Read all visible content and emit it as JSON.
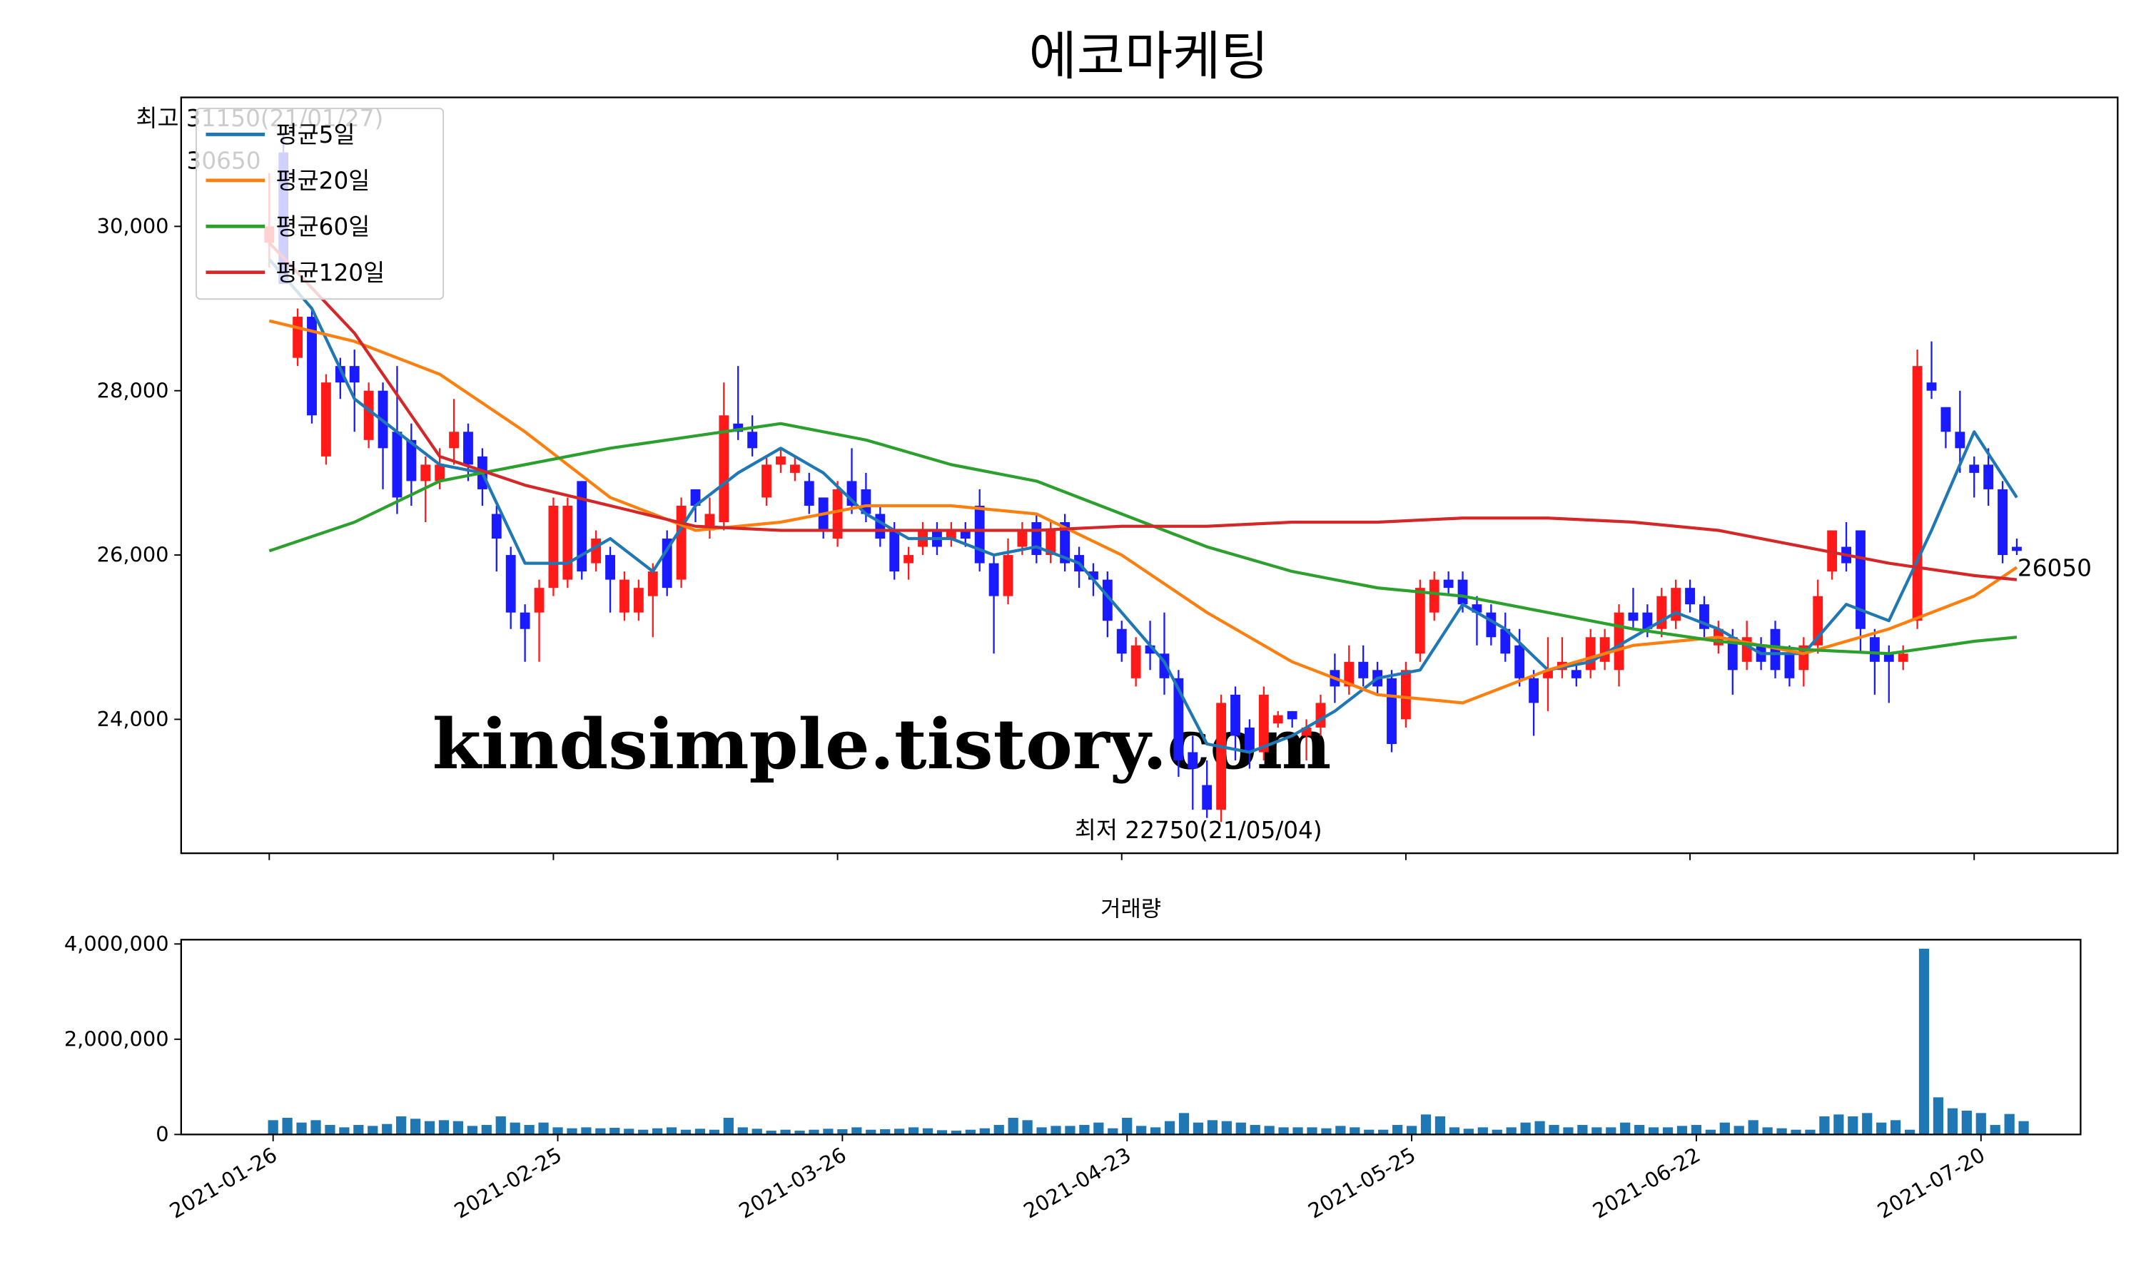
{
  "chart_data": [
    {
      "type": "candlestick",
      "title": "에코마케팅",
      "up_color": "#ff1a1a",
      "down_color": "#1a1aff",
      "xlim": [
        -6.2,
        130.1
      ],
      "ylim": [
        22370,
        31570
      ],
      "yticks": [
        {
          "value": 24000,
          "label": "24,000"
        },
        {
          "value": 26000,
          "label": "26,000"
        },
        {
          "value": 28000,
          "label": "28,000"
        },
        {
          "value": 30000,
          "label": "30,000"
        }
      ],
      "legend": "upper left",
      "candles": [
        [
          29800,
          30650,
          29500,
          30000
        ],
        [
          30900,
          31150,
          29300,
          29300
        ],
        [
          28400,
          29000,
          28300,
          28900
        ],
        [
          28900,
          29000,
          27600,
          27700
        ],
        [
          27200,
          28200,
          27100,
          28100
        ],
        [
          28300,
          28400,
          27900,
          28100
        ],
        [
          28300,
          28500,
          27500,
          28100
        ],
        [
          27400,
          28100,
          27300,
          28000
        ],
        [
          28000,
          28100,
          26800,
          27300
        ],
        [
          27500,
          28300,
          26500,
          26700
        ],
        [
          27400,
          27600,
          26600,
          26900
        ],
        [
          26900,
          27200,
          26400,
          27100
        ],
        [
          26900,
          27300,
          26800,
          27100
        ],
        [
          27300,
          27900,
          27100,
          27500
        ],
        [
          27500,
          27600,
          26900,
          27100
        ],
        [
          27200,
          27300,
          26600,
          26800
        ],
        [
          26500,
          26600,
          25800,
          26200
        ],
        [
          26000,
          26100,
          25100,
          25300
        ],
        [
          25300,
          25400,
          24700,
          25100
        ],
        [
          25300,
          25700,
          24700,
          25600
        ],
        [
          25600,
          26700,
          25500,
          26600
        ],
        [
          25700,
          26700,
          25600,
          26600
        ],
        [
          26900,
          26900,
          25700,
          25800
        ],
        [
          25900,
          26300,
          25800,
          26200
        ],
        [
          26000,
          26100,
          25300,
          25700
        ],
        [
          25300,
          25800,
          25200,
          25700
        ],
        [
          25300,
          25700,
          25200,
          25600
        ],
        [
          25500,
          25900,
          25000,
          25800
        ],
        [
          26200,
          26300,
          25500,
          25600
        ],
        [
          25700,
          26700,
          25600,
          26600
        ],
        [
          26800,
          26800,
          26400,
          26600
        ],
        [
          26300,
          26700,
          26200,
          26500
        ],
        [
          26400,
          28100,
          26300,
          27700
        ],
        [
          27600,
          28300,
          27400,
          27500
        ],
        [
          27500,
          27700,
          27200,
          27300
        ],
        [
          26700,
          27200,
          26600,
          27100
        ],
        [
          27100,
          27300,
          27000,
          27200
        ],
        [
          27000,
          27200,
          26900,
          27100
        ],
        [
          26900,
          27000,
          26500,
          26600
        ],
        [
          26700,
          26700,
          26200,
          26300
        ],
        [
          26200,
          26900,
          26100,
          26800
        ],
        [
          26900,
          27300,
          26500,
          26600
        ],
        [
          26800,
          27000,
          26400,
          26500
        ],
        [
          26500,
          26600,
          26100,
          26200
        ],
        [
          26300,
          26400,
          25700,
          25800
        ],
        [
          25900,
          26100,
          25700,
          26000
        ],
        [
          26100,
          26400,
          26000,
          26300
        ],
        [
          26300,
          26400,
          26000,
          26100
        ],
        [
          26200,
          26400,
          26100,
          26300
        ],
        [
          26300,
          26400,
          26100,
          26200
        ],
        [
          26600,
          26800,
          25800,
          25900
        ],
        [
          25900,
          26000,
          24800,
          25500
        ],
        [
          25500,
          26200,
          25400,
          26000
        ],
        [
          26100,
          26400,
          26000,
          26300
        ],
        [
          26400,
          26500,
          25900,
          26000
        ],
        [
          26000,
          26400,
          25900,
          26300
        ],
        [
          26400,
          26500,
          25800,
          25900
        ],
        [
          26000,
          26100,
          25600,
          25800
        ],
        [
          25800,
          25900,
          25500,
          25700
        ],
        [
          25700,
          25800,
          25000,
          25200
        ],
        [
          25100,
          25200,
          24700,
          24800
        ],
        [
          24500,
          25000,
          24400,
          24900
        ],
        [
          24900,
          25200,
          24600,
          24800
        ],
        [
          24800,
          25300,
          24300,
          24500
        ],
        [
          24500,
          24600,
          23300,
          23500
        ],
        [
          23600,
          23800,
          22900,
          23400
        ],
        [
          23200,
          23500,
          22800,
          22900
        ],
        [
          22900,
          24300,
          22750,
          24200
        ],
        [
          24300,
          24400,
          23500,
          23800
        ],
        [
          23900,
          24000,
          23400,
          23600
        ],
        [
          23600,
          24400,
          23500,
          24300
        ],
        [
          23950,
          24100,
          23900,
          24050
        ],
        [
          24100,
          24100,
          23900,
          24000
        ],
        [
          23800,
          24000,
          23500,
          23900
        ],
        [
          23900,
          24300,
          23800,
          24200
        ],
        [
          24600,
          24800,
          24200,
          24400
        ],
        [
          24400,
          24900,
          24300,
          24700
        ],
        [
          24700,
          24900,
          24400,
          24500
        ],
        [
          24600,
          24700,
          24300,
          24400
        ],
        [
          24500,
          24600,
          23600,
          23700
        ],
        [
          24000,
          24700,
          23900,
          24600
        ],
        [
          24800,
          25700,
          24700,
          25600
        ],
        [
          25300,
          25800,
          25200,
          25700
        ],
        [
          25700,
          25800,
          25500,
          25600
        ],
        [
          25700,
          25800,
          25300,
          25400
        ],
        [
          25400,
          25500,
          24900,
          25300
        ],
        [
          25300,
          25400,
          24900,
          25000
        ],
        [
          25100,
          25300,
          24700,
          24800
        ],
        [
          24900,
          25100,
          24400,
          24500
        ],
        [
          24500,
          24600,
          23800,
          24200
        ],
        [
          24500,
          25000,
          24100,
          24600
        ],
        [
          24600,
          25000,
          24500,
          24700
        ],
        [
          24600,
          24700,
          24400,
          24500
        ],
        [
          24600,
          25100,
          24500,
          25000
        ],
        [
          24700,
          25100,
          24600,
          25000
        ],
        [
          24600,
          25400,
          24400,
          25300
        ],
        [
          25300,
          25600,
          25100,
          25200
        ],
        [
          25300,
          25400,
          25000,
          25100
        ],
        [
          25100,
          25600,
          25000,
          25500
        ],
        [
          25200,
          25700,
          25100,
          25600
        ],
        [
          25600,
          25700,
          25300,
          25400
        ],
        [
          25400,
          25500,
          25000,
          25100
        ],
        [
          24900,
          25200,
          24800,
          25100
        ],
        [
          25000,
          25100,
          24300,
          24600
        ],
        [
          24700,
          25200,
          24600,
          25000
        ],
        [
          24900,
          25000,
          24600,
          24700
        ],
        [
          25100,
          25200,
          24500,
          24600
        ],
        [
          24800,
          24900,
          24400,
          24500
        ],
        [
          24600,
          25000,
          24400,
          24900
        ],
        [
          24900,
          25700,
          24800,
          25500
        ],
        [
          25800,
          26300,
          25700,
          26300
        ],
        [
          26100,
          26400,
          25800,
          25900
        ],
        [
          26300,
          26300,
          24800,
          25100
        ],
        [
          25000,
          25100,
          24300,
          24700
        ],
        [
          24800,
          24900,
          24200,
          24700
        ],
        [
          24700,
          24900,
          24600,
          24800
        ],
        [
          25200,
          28500,
          25100,
          28300
        ],
        [
          28100,
          28600,
          27900,
          28000
        ],
        [
          27800,
          27800,
          27300,
          27500
        ],
        [
          27500,
          28000,
          27000,
          27300
        ],
        [
          27100,
          27200,
          26700,
          27000
        ],
        [
          27100,
          27300,
          26600,
          26800
        ],
        [
          26800,
          26900,
          25900,
          26000
        ],
        [
          26100,
          26200,
          26000,
          26050
        ]
      ],
      "series": [
        {
          "name": "평균5일",
          "color": "#1f77b4",
          "x": [
            0,
            3,
            6,
            9,
            12,
            15,
            18,
            21,
            24,
            27,
            30,
            33,
            36,
            39,
            42,
            45,
            48,
            51,
            54,
            57,
            60,
            63,
            66,
            69,
            72,
            75,
            78,
            81,
            84,
            87,
            90,
            93,
            96,
            99,
            102,
            105,
            108,
            111,
            114,
            117,
            120,
            123
          ],
          "values": [
            29600,
            29000,
            27900,
            27500,
            27100,
            27000,
            25900,
            25900,
            26200,
            25800,
            26600,
            27000,
            27300,
            27000,
            26500,
            26200,
            26200,
            26000,
            26100,
            25900,
            25300,
            24700,
            23700,
            23600,
            23800,
            24100,
            24500,
            24600,
            25400,
            25100,
            24600,
            24700,
            25000,
            25300,
            25100,
            24800,
            24800,
            25400,
            25200,
            26300,
            27500,
            26700
          ]
        },
        {
          "name": "평균20일",
          "color": "#ff7f0e",
          "x": [
            0,
            6,
            12,
            18,
            24,
            30,
            36,
            42,
            48,
            54,
            60,
            66,
            72,
            78,
            84,
            90,
            96,
            102,
            108,
            114,
            120,
            123
          ],
          "values": [
            28850,
            28600,
            28200,
            27500,
            26700,
            26300,
            26400,
            26600,
            26600,
            26500,
            26000,
            25300,
            24700,
            24300,
            24200,
            24600,
            24900,
            25000,
            24800,
            25100,
            25500,
            25850
          ]
        },
        {
          "name": "평균60일",
          "color": "#2ca02c",
          "x": [
            0,
            6,
            12,
            18,
            24,
            30,
            36,
            42,
            48,
            54,
            60,
            66,
            72,
            78,
            84,
            90,
            96,
            102,
            108,
            114,
            120,
            123
          ],
          "values": [
            26050,
            26400,
            26900,
            27100,
            27300,
            27450,
            27600,
            27400,
            27100,
            26900,
            26500,
            26100,
            25800,
            25600,
            25500,
            25300,
            25100,
            24950,
            24850,
            24800,
            24950,
            25000
          ]
        },
        {
          "name": "평균120일",
          "color": "#d62728",
          "x": [
            0,
            6,
            12,
            18,
            24,
            30,
            36,
            42,
            48,
            54,
            60,
            66,
            72,
            78,
            84,
            90,
            96,
            102,
            108,
            114,
            120,
            123
          ],
          "values": [
            29800,
            28700,
            27200,
            26850,
            26600,
            26350,
            26300,
            26300,
            26300,
            26300,
            26350,
            26350,
            26400,
            26400,
            26450,
            26450,
            26400,
            26300,
            26100,
            25900,
            25750,
            25700
          ]
        }
      ],
      "annotations": [
        {
          "text": "최고 31150(21/01/27)",
          "color": "#ff0000"
        },
        {
          "text": "30650",
          "color": "#000000"
        },
        {
          "text": "최저 22750(21/05/04)",
          "color": "#0000ff"
        },
        {
          "text": "26050",
          "color": "#000000"
        }
      ],
      "watermark": "kindsimple.tistory.com"
    },
    {
      "type": "bar",
      "title": "거래량",
      "color": "#1f77b4",
      "xlim": [
        -6.46,
        127.0
      ],
      "ylim": [
        0,
        4090000
      ],
      "yticks": [
        {
          "value": 0,
          "label": "0"
        },
        {
          "value": 2000000,
          "label": "2,000,000"
        },
        {
          "value": 4000000,
          "label": "4,000,000"
        }
      ],
      "xticks": [
        {
          "value": 0,
          "label": "2021-01-26"
        },
        {
          "value": 20,
          "label": "2021-02-25"
        },
        {
          "value": 40,
          "label": "2021-03-26"
        },
        {
          "value": 60,
          "label": "2021-04-23"
        },
        {
          "value": 80,
          "label": "2021-05-25"
        },
        {
          "value": 100,
          "label": "2021-06-22"
        },
        {
          "value": 120,
          "label": "2021-07-20"
        }
      ],
      "values": [
        300000,
        350000,
        250000,
        300000,
        200000,
        150000,
        200000,
        180000,
        220000,
        380000,
        330000,
        280000,
        300000,
        280000,
        180000,
        200000,
        380000,
        250000,
        200000,
        250000,
        150000,
        130000,
        150000,
        130000,
        140000,
        120000,
        100000,
        130000,
        150000,
        100000,
        120000,
        100000,
        350000,
        150000,
        120000,
        80000,
        100000,
        80000,
        100000,
        120000,
        110000,
        150000,
        100000,
        110000,
        120000,
        150000,
        130000,
        90000,
        80000,
        100000,
        130000,
        200000,
        350000,
        300000,
        150000,
        180000,
        180000,
        200000,
        250000,
        130000,
        350000,
        180000,
        150000,
        280000,
        450000,
        250000,
        300000,
        280000,
        250000,
        200000,
        180000,
        150000,
        150000,
        150000,
        130000,
        180000,
        150000,
        100000,
        100000,
        200000,
        180000,
        420000,
        380000,
        150000,
        120000,
        150000,
        100000,
        150000,
        250000,
        280000,
        200000,
        150000,
        200000,
        150000,
        150000,
        250000,
        200000,
        150000,
        150000,
        180000,
        200000,
        100000,
        250000,
        180000,
        300000,
        150000,
        130000,
        100000,
        100000,
        380000,
        420000,
        380000,
        450000,
        250000,
        300000,
        100000,
        3900000,
        780000,
        550000,
        500000,
        450000,
        200000,
        430000,
        280000
      ]
    }
  ]
}
